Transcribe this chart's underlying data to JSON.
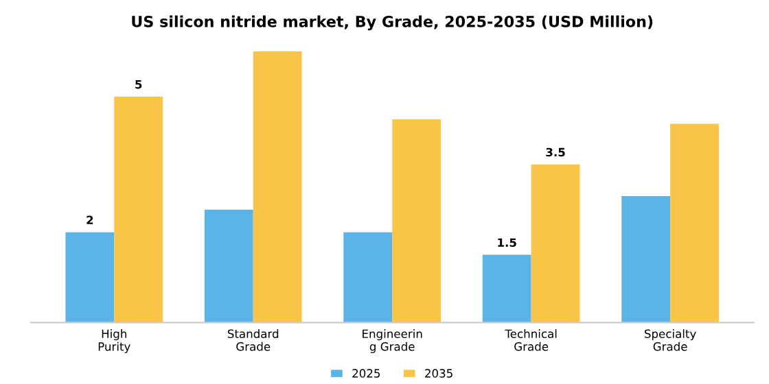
{
  "chart_data": {
    "type": "bar",
    "title": "US silicon nitride market, By Grade, 2025-2035 (USD Million)",
    "categories": [
      "High\nPurity",
      "Standard\nGrade",
      "Engineerin\ng Grade",
      "Technical\nGrade",
      "Specialty\nGrade"
    ],
    "series": [
      {
        "name": "2025",
        "color": "#5ab4e5",
        "values": [
          2,
          2.5,
          2,
          1.5,
          2.8
        ],
        "value_labels": [
          "2",
          null,
          null,
          "1.5",
          null
        ]
      },
      {
        "name": "2035",
        "color": "#f9c548",
        "values": [
          5,
          6,
          4.5,
          3.5,
          4.4
        ],
        "value_labels": [
          "5",
          null,
          null,
          "3.5",
          null
        ]
      }
    ],
    "legend": "bottom",
    "grid": false
  }
}
